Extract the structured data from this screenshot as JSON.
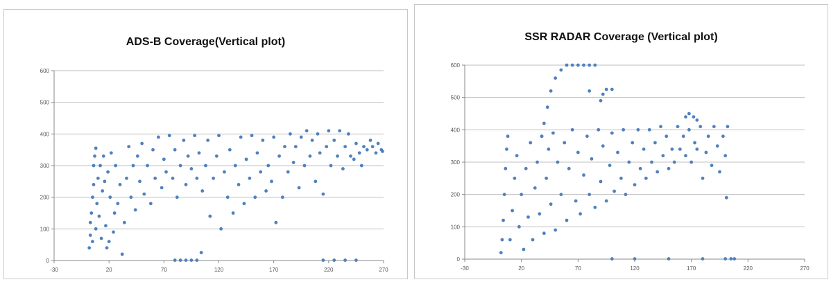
{
  "chart_data": [
    {
      "type": "scatter",
      "title": "ADS-B Coverage(Vertical plot)",
      "xlabel": "",
      "ylabel": "",
      "xlim": [
        -30,
        270
      ],
      "ylim": [
        0,
        600
      ],
      "x_ticks": [
        "-30",
        "20",
        "70",
        "120",
        "170",
        "220",
        "270"
      ],
      "y_ticks": [
        "0",
        "100",
        "200",
        "300",
        "400",
        "500",
        "600"
      ],
      "grid": true,
      "legend": "none",
      "marker_color": "#4F81BD",
      "series": [
        {
          "values": [
            [
              2,
              40
            ],
            [
              3,
              80
            ],
            [
              3,
              120
            ],
            [
              4,
              150
            ],
            [
              5,
              60
            ],
            [
              5,
              200
            ],
            [
              6,
              240
            ],
            [
              6,
              300
            ],
            [
              7,
              330
            ],
            [
              8,
              355
            ],
            [
              8,
              100
            ],
            [
              9,
              180
            ],
            [
              10,
              260
            ],
            [
              11,
              140
            ],
            [
              12,
              300
            ],
            [
              13,
              70
            ],
            [
              14,
              220
            ],
            [
              15,
              330
            ],
            [
              16,
              250
            ],
            [
              17,
              110
            ],
            [
              18,
              40
            ],
            [
              19,
              280
            ],
            [
              20,
              60
            ],
            [
              21,
              200
            ],
            [
              22,
              340
            ],
            [
              24,
              90
            ],
            [
              25,
              150
            ],
            [
              26,
              300
            ],
            [
              28,
              180
            ],
            [
              30,
              240
            ],
            [
              32,
              20
            ],
            [
              34,
              120
            ],
            [
              36,
              260
            ],
            [
              38,
              360
            ],
            [
              40,
              200
            ],
            [
              42,
              300
            ],
            [
              44,
              160
            ],
            [
              46,
              330
            ],
            [
              48,
              250
            ],
            [
              50,
              370
            ],
            [
              52,
              210
            ],
            [
              55,
              300
            ],
            [
              58,
              180
            ],
            [
              60,
              350
            ],
            [
              62,
              260
            ],
            [
              65,
              390
            ],
            [
              68,
              230
            ],
            [
              70,
              320
            ],
            [
              72,
              280
            ],
            [
              75,
              395
            ],
            [
              78,
              260
            ],
            [
              80,
              350
            ],
            [
              82,
              200
            ],
            [
              85,
              300
            ],
            [
              88,
              380
            ],
            [
              90,
              240
            ],
            [
              92,
              330
            ],
            [
              95,
              290
            ],
            [
              98,
              395
            ],
            [
              100,
              260
            ],
            [
              102,
              340
            ],
            [
              105,
              220
            ],
            [
              108,
              300
            ],
            [
              110,
              380
            ],
            [
              112,
              140
            ],
            [
              115,
              260
            ],
            [
              118,
              330
            ],
            [
              120,
              395
            ],
            [
              122,
              100
            ],
            [
              125,
              280
            ],
            [
              128,
              200
            ],
            [
              130,
              350
            ],
            [
              133,
              150
            ],
            [
              135,
              300
            ],
            [
              138,
              240
            ],
            [
              140,
              390
            ],
            [
              143,
              180
            ],
            [
              145,
              320
            ],
            [
              148,
              260
            ],
            [
              150,
              395
            ],
            [
              153,
              200
            ],
            [
              155,
              340
            ],
            [
              158,
              280
            ],
            [
              160,
              380
            ],
            [
              163,
              220
            ],
            [
              165,
              300
            ],
            [
              168,
              250
            ],
            [
              170,
              390
            ],
            [
              172,
              120
            ],
            [
              175,
              330
            ],
            [
              178,
              200
            ],
            [
              180,
              360
            ],
            [
              183,
              280
            ],
            [
              185,
              400
            ],
            [
              188,
              310
            ],
            [
              190,
              360
            ],
            [
              193,
              230
            ],
            [
              195,
              390
            ],
            [
              198,
              300
            ],
            [
              200,
              410
            ],
            [
              203,
              330
            ],
            [
              205,
              380
            ],
            [
              208,
              250
            ],
            [
              210,
              400
            ],
            [
              212,
              340
            ],
            [
              215,
              210
            ],
            [
              218,
              360
            ],
            [
              220,
              410
            ],
            [
              222,
              300
            ],
            [
              225,
              380
            ],
            [
              228,
              330
            ],
            [
              230,
              410
            ],
            [
              233,
              290
            ],
            [
              235,
              360
            ],
            [
              238,
              400
            ],
            [
              240,
              330
            ],
            [
              243,
              320
            ],
            [
              245,
              370
            ],
            [
              248,
              340
            ],
            [
              250,
              300
            ],
            [
              252,
              360
            ],
            [
              255,
              350
            ],
            [
              258,
              380
            ],
            [
              260,
              360
            ],
            [
              263,
              340
            ],
            [
              265,
              370
            ],
            [
              268,
              350
            ],
            [
              269,
              345
            ],
            [
              80,
              1
            ],
            [
              85,
              1
            ],
            [
              90,
              1
            ],
            [
              95,
              1
            ],
            [
              100,
              1
            ],
            [
              104,
              25
            ],
            [
              215,
              1
            ],
            [
              225,
              1
            ],
            [
              235,
              1
            ],
            [
              245,
              1
            ]
          ]
        }
      ]
    },
    {
      "type": "scatter",
      "title": "SSR RADAR Coverage (Vertical plot)",
      "xlabel": "",
      "ylabel": "",
      "xlim": [
        -30,
        270
      ],
      "ylim": [
        0,
        600
      ],
      "x_ticks": [
        "-30",
        "20",
        "70",
        "120",
        "170",
        "220",
        "270"
      ],
      "y_ticks": [
        "0",
        "100",
        "200",
        "300",
        "400",
        "500",
        "600"
      ],
      "grid": true,
      "legend": "none",
      "marker_color": "#4F81BD",
      "series": [
        {
          "values": [
            [
              2,
              20
            ],
            [
              3,
              60
            ],
            [
              4,
              120
            ],
            [
              5,
              200
            ],
            [
              6,
              280
            ],
            [
              7,
              340
            ],
            [
              8,
              380
            ],
            [
              10,
              60
            ],
            [
              12,
              150
            ],
            [
              14,
              250
            ],
            [
              16,
              320
            ],
            [
              18,
              100
            ],
            [
              20,
              200
            ],
            [
              22,
              30
            ],
            [
              24,
              280
            ],
            [
              26,
              130
            ],
            [
              28,
              360
            ],
            [
              30,
              60
            ],
            [
              32,
              220
            ],
            [
              34,
              300
            ],
            [
              36,
              140
            ],
            [
              38,
              380
            ],
            [
              40,
              80
            ],
            [
              42,
              250
            ],
            [
              44,
              340
            ],
            [
              46,
              170
            ],
            [
              48,
              390
            ],
            [
              50,
              90
            ],
            [
              52,
              300
            ],
            [
              55,
              200
            ],
            [
              58,
              360
            ],
            [
              60,
              120
            ],
            [
              62,
              280
            ],
            [
              65,
              400
            ],
            [
              68,
              180
            ],
            [
              70,
              330
            ],
            [
              72,
              140
            ],
            [
              75,
              260
            ],
            [
              78,
              380
            ],
            [
              80,
              200
            ],
            [
              82,
              310
            ],
            [
              85,
              160
            ],
            [
              88,
              400
            ],
            [
              90,
              240
            ],
            [
              92,
              350
            ],
            [
              95,
              180
            ],
            [
              98,
              290
            ],
            [
              100,
              390
            ],
            [
              102,
              210
            ],
            [
              105,
              330
            ],
            [
              108,
              250
            ],
            [
              110,
              400
            ],
            [
              112,
              200
            ],
            [
              115,
              300
            ],
            [
              118,
              360
            ],
            [
              120,
              230
            ],
            [
              123,
              400
            ],
            [
              125,
              280
            ],
            [
              128,
              340
            ],
            [
              130,
              250
            ],
            [
              133,
              400
            ],
            [
              135,
              300
            ],
            [
              138,
              360
            ],
            [
              140,
              270
            ],
            [
              143,
              410
            ],
            [
              145,
              320
            ],
            [
              148,
              380
            ],
            [
              150,
              280
            ],
            [
              153,
              340
            ],
            [
              155,
              300
            ],
            [
              158,
              410
            ],
            [
              160,
              340
            ],
            [
              163,
              380
            ],
            [
              165,
              320
            ],
            [
              168,
              400
            ],
            [
              170,
              300
            ],
            [
              173,
              360
            ],
            [
              175,
              340
            ],
            [
              178,
              410
            ],
            [
              180,
              250
            ],
            [
              183,
              330
            ],
            [
              185,
              380
            ],
            [
              188,
              290
            ],
            [
              190,
              410
            ],
            [
              193,
              350
            ],
            [
              195,
              270
            ],
            [
              198,
              380
            ],
            [
              200,
              320
            ],
            [
              201,
              190
            ],
            [
              202,
              410
            ],
            [
              38,
              380
            ],
            [
              40,
              420
            ],
            [
              43,
              470
            ],
            [
              46,
              520
            ],
            [
              50,
              560
            ],
            [
              55,
              585
            ],
            [
              60,
              600
            ],
            [
              65,
              600
            ],
            [
              70,
              600
            ],
            [
              75,
              600
            ],
            [
              80,
              600
            ],
            [
              85,
              600
            ],
            [
              95,
              525
            ],
            [
              100,
              525
            ],
            [
              90,
              490
            ],
            [
              92,
              510
            ],
            [
              80,
              520
            ],
            [
              165,
              440
            ],
            [
              168,
              450
            ],
            [
              172,
              440
            ],
            [
              175,
              430
            ],
            [
              100,
              1
            ],
            [
              120,
              1
            ],
            [
              150,
              1
            ],
            [
              180,
              1
            ],
            [
              200,
              1
            ],
            [
              205,
              1
            ],
            [
              208,
              1
            ]
          ]
        }
      ]
    }
  ]
}
